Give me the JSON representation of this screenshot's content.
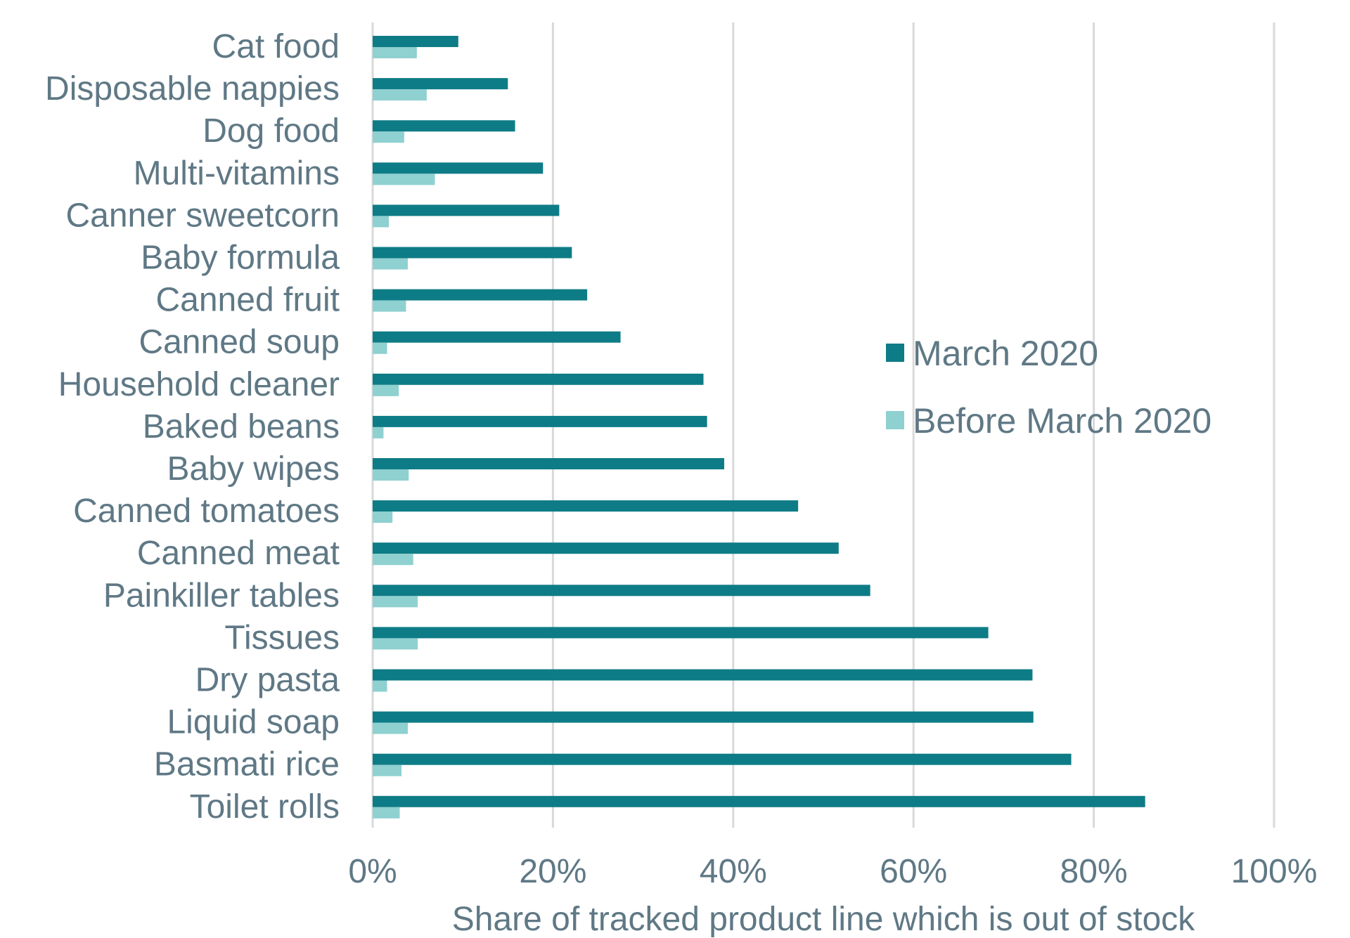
{
  "chart_data": {
    "type": "bar",
    "orientation": "horizontal",
    "title": "",
    "xlabel": "Share of tracked product line which is out of stock",
    "ylabel": "",
    "xlim": [
      0,
      100
    ],
    "x_ticks": [
      "0%",
      "20%",
      "40%",
      "60%",
      "80%",
      "100%"
    ],
    "x_tick_values": [
      0,
      20,
      40,
      60,
      80,
      100
    ],
    "grid": "vertical",
    "legend_position": "right",
    "categories": [
      "Cat food",
      "Disposable nappies",
      "Dog food",
      "Multi-vitamins",
      "Canner sweetcorn",
      "Baby formula",
      "Canned fruit",
      "Canned soup",
      "Household cleaner",
      "Baked beans",
      "Baby wipes",
      "Canned tomatoes",
      "Canned meat",
      "Painkiller tables",
      "Tissues",
      "Dry pasta",
      "Liquid soap",
      "Basmati rice",
      "Toilet rolls"
    ],
    "series": [
      {
        "name": "March 2020",
        "color": "#0e7c86",
        "values": [
          9.5,
          15,
          15.8,
          18.9,
          20.7,
          22.1,
          23.8,
          27.5,
          36.7,
          37.1,
          39,
          47.2,
          51.7,
          55.2,
          68.3,
          73.2,
          73.3,
          77.5,
          85.7
        ]
      },
      {
        "name": "Before March 2020",
        "color": "#8fd0d0",
        "values": [
          4.9,
          6,
          3.5,
          6.9,
          1.8,
          3.9,
          3.7,
          1.6,
          2.9,
          1.2,
          4,
          2.2,
          4.5,
          5,
          5,
          1.6,
          3.9,
          3.2,
          3
        ]
      }
    ]
  }
}
